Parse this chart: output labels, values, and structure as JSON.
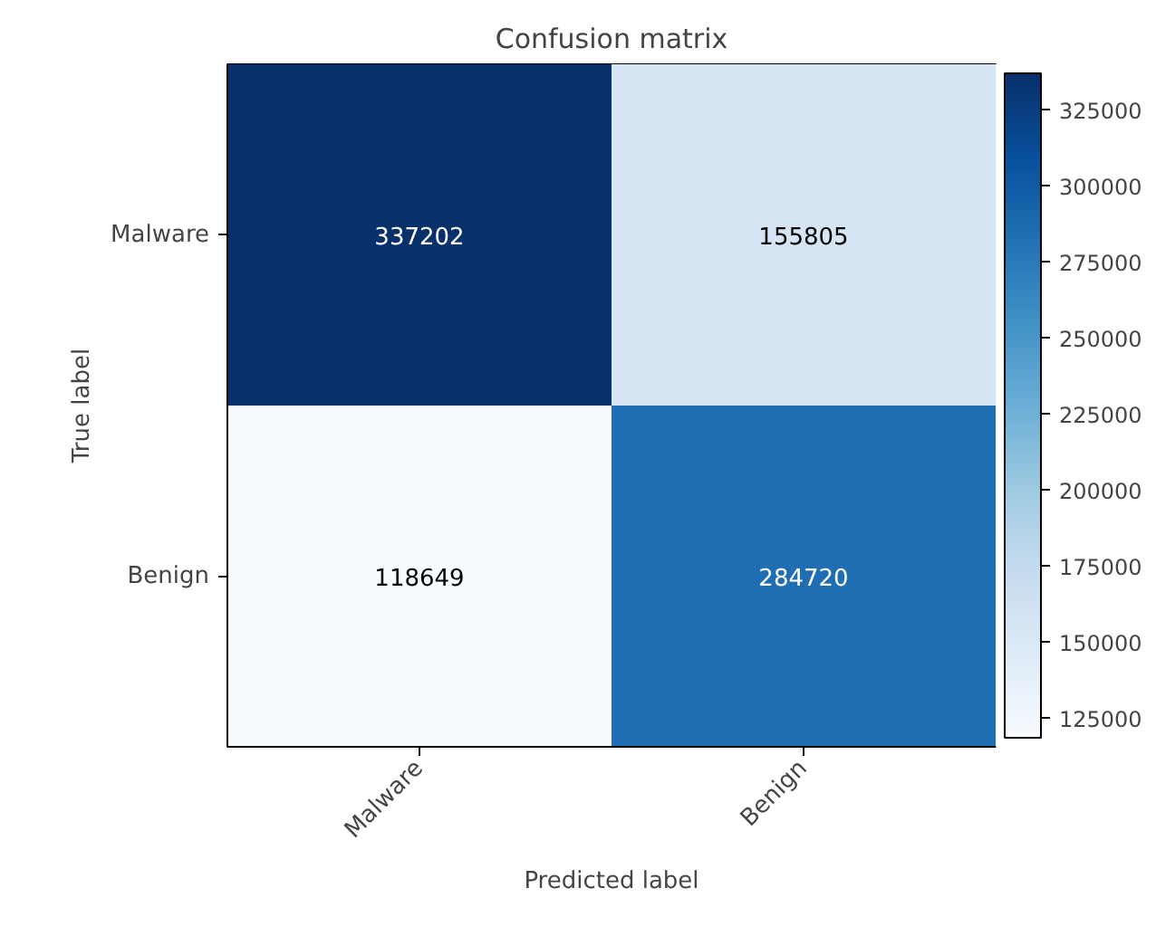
{
  "chart_data": {
    "type": "heatmap",
    "title": "Confusion matrix",
    "xlabel": "Predicted label",
    "ylabel": "True label",
    "categories": [
      "Malware",
      "Benign"
    ],
    "y_categories": [
      "Malware",
      "Benign"
    ],
    "cells": [
      [
        337202,
        155805
      ],
      [
        118649,
        284720
      ]
    ],
    "data_labels": true,
    "clim": [
      118649,
      337202
    ],
    "cticks": [
      125000,
      150000,
      175000,
      200000,
      225000,
      250000,
      275000,
      300000,
      325000
    ]
  }
}
